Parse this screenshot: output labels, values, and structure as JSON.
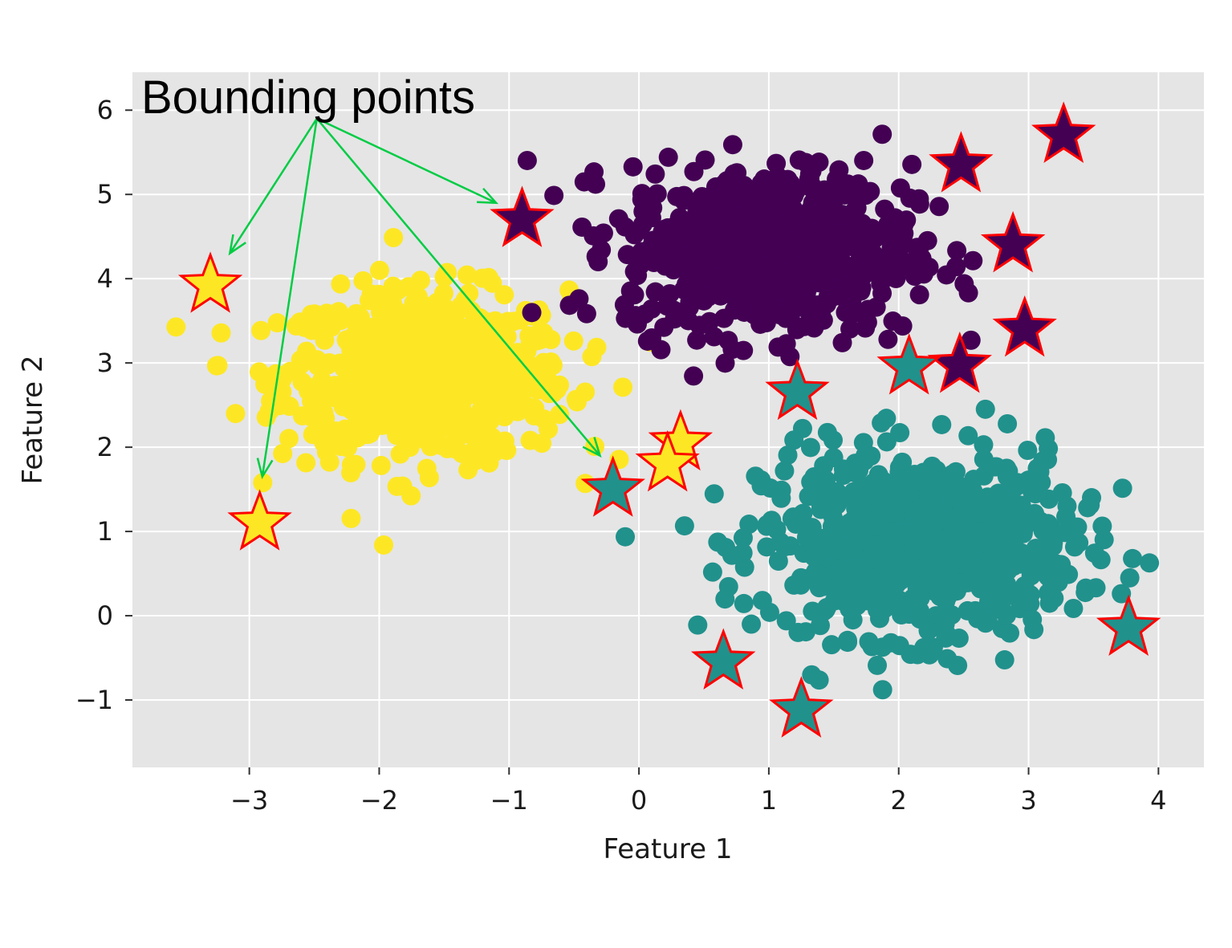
{
  "chart_data": {
    "type": "scatter",
    "title": "",
    "xlabel": "Feature 1",
    "ylabel": "Feature 2",
    "xlim": [
      -3.9,
      4.35
    ],
    "ylim": [
      -1.8,
      6.45
    ],
    "xticks": [
      -3,
      -2,
      -1,
      0,
      1,
      2,
      3,
      4
    ],
    "yticks": [
      -1,
      0,
      1,
      2,
      3,
      4,
      5,
      6
    ],
    "grid": true,
    "background": "#e5e5e5",
    "clusters": [
      {
        "color": "#440154",
        "center": [
          1.0,
          4.35
        ],
        "spread": [
          0.55,
          0.5
        ]
      },
      {
        "color": "#21918c",
        "center": [
          2.15,
          0.85
        ],
        "spread": [
          0.6,
          0.55
        ]
      },
      {
        "color": "#fde725",
        "center": [
          -1.65,
          2.85
        ],
        "spread": [
          0.55,
          0.5
        ]
      }
    ],
    "bounding_points": [
      {
        "x": -0.9,
        "y": 4.7,
        "color": "#440154"
      },
      {
        "x": 2.48,
        "y": 5.35,
        "color": "#440154"
      },
      {
        "x": 3.27,
        "y": 5.7,
        "color": "#440154"
      },
      {
        "x": 2.88,
        "y": 4.4,
        "color": "#440154"
      },
      {
        "x": 2.97,
        "y": 3.4,
        "color": "#440154"
      },
      {
        "x": 2.47,
        "y": 2.97,
        "color": "#440154"
      },
      {
        "x": 2.08,
        "y": 2.95,
        "color": "#21918c"
      },
      {
        "x": 1.22,
        "y": 2.65,
        "color": "#21918c"
      },
      {
        "x": -0.2,
        "y": 1.5,
        "color": "#21918c"
      },
      {
        "x": 3.77,
        "y": -0.15,
        "color": "#21918c"
      },
      {
        "x": 0.65,
        "y": -0.55,
        "color": "#21918c"
      },
      {
        "x": 1.25,
        "y": -1.12,
        "color": "#21918c"
      },
      {
        "x": -3.3,
        "y": 3.92,
        "color": "#fde725"
      },
      {
        "x": -2.92,
        "y": 1.1,
        "color": "#fde725"
      },
      {
        "x": 0.32,
        "y": 2.05,
        "color": "#fde725"
      },
      {
        "x": 0.22,
        "y": 1.8,
        "color": "#fde725"
      }
    ],
    "star_edge_color": "#ff0000",
    "annotation": {
      "text": "Bounding points",
      "origin": [
        -2.48,
        5.9
      ],
      "arrow_color": "#00cc44",
      "targets": [
        [
          -3.15,
          4.3
        ],
        [
          -2.9,
          1.65
        ],
        [
          -1.1,
          4.9
        ],
        [
          -0.3,
          1.9
        ]
      ]
    }
  }
}
